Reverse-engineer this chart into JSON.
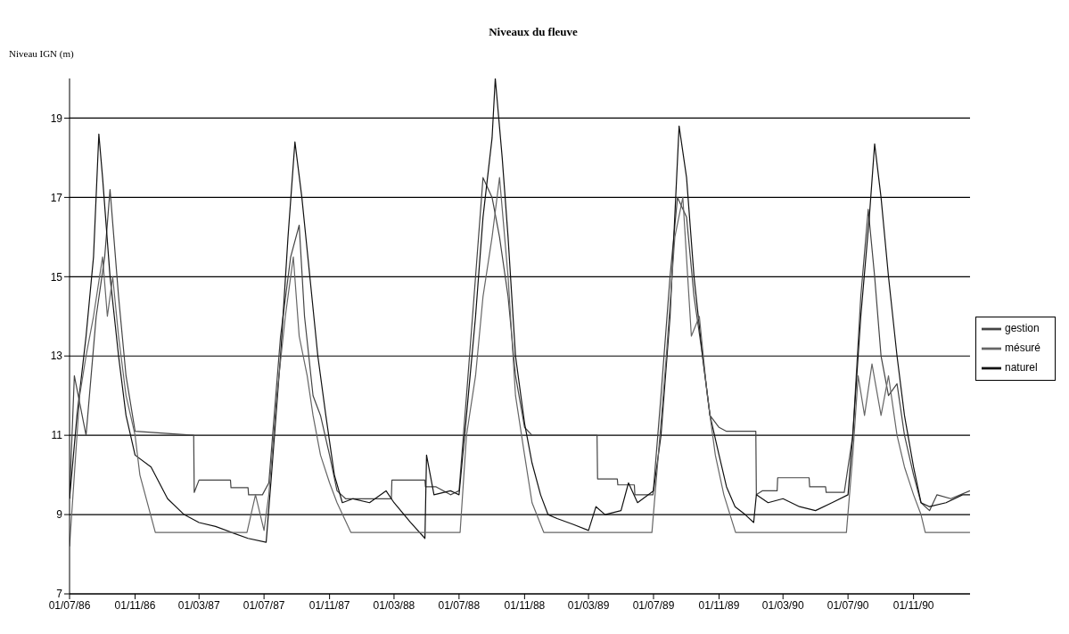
{
  "chart_data": {
    "type": "line",
    "title": "Niveaux du fleuve",
    "ylabel": "Niveau IGN (m)",
    "ylim": [
      7,
      20
    ],
    "yticks": [
      7,
      9,
      11,
      13,
      15,
      17,
      19
    ],
    "xlim": [
      "1986-07-01",
      "1991-02-15"
    ],
    "xticks": [
      {
        "value": "1986-07-01",
        "label": "01/07/86"
      },
      {
        "value": "1986-11-01",
        "label": "01/11/86"
      },
      {
        "value": "1987-03-01",
        "label": "01/03/87"
      },
      {
        "value": "1987-07-01",
        "label": "01/07/87"
      },
      {
        "value": "1987-11-01",
        "label": "01/11/87"
      },
      {
        "value": "1988-03-01",
        "label": "01/03/88"
      },
      {
        "value": "1988-07-01",
        "label": "01/07/88"
      },
      {
        "value": "1988-11-01",
        "label": "01/11/88"
      },
      {
        "value": "1989-03-01",
        "label": "01/03/89"
      },
      {
        "value": "1989-07-01",
        "label": "01/07/89"
      },
      {
        "value": "1989-11-01",
        "label": "01/11/89"
      },
      {
        "value": "1990-03-01",
        "label": "01/03/90"
      },
      {
        "value": "1990-07-01",
        "label": "01/07/90"
      },
      {
        "value": "1990-11-01",
        "label": "01/11/90"
      }
    ],
    "grid": "y",
    "legend": "right",
    "marker": "none",
    "line_style": "solid",
    "series": [
      {
        "name": "gestion",
        "color": "#444444",
        "x": [
          "1986-07-01",
          "1986-07-10",
          "1986-08-01",
          "1986-08-20",
          "1986-09-05",
          "1986-09-15",
          "1986-10-01",
          "1986-10-15",
          "1986-11-01",
          "1987-02-19",
          "1987-02-20",
          "1987-03-01",
          "1987-04-29",
          "1987-04-30",
          "1987-06-01",
          "1987-06-02",
          "1987-06-28",
          "1987-07-10",
          "1987-08-01",
          "1987-08-20",
          "1987-09-05",
          "1987-09-15",
          "1987-10-01",
          "1987-10-15",
          "1987-11-01",
          "1987-11-15",
          "1987-12-01",
          "1988-02-25",
          "1988-02-26",
          "1988-04-28",
          "1988-04-29",
          "1988-05-19",
          "1988-06-15",
          "1988-07-01",
          "1988-07-15",
          "1988-08-01",
          "1988-08-15",
          "1988-09-01",
          "1988-09-15",
          "1988-10-01",
          "1988-10-15",
          "1988-11-01",
          "1988-11-15",
          "1989-03-17",
          "1989-03-18",
          "1989-04-24",
          "1989-04-25",
          "1989-05-26",
          "1989-05-27",
          "1989-06-30",
          "1989-07-15",
          "1989-08-01",
          "1989-08-15",
          "1989-09-01",
          "1989-09-15",
          "1989-10-01",
          "1989-10-15",
          "1989-11-01",
          "1989-11-15",
          "1990-01-09",
          "1990-01-10",
          "1990-01-21",
          "1990-02-18",
          "1990-02-19",
          "1990-04-19",
          "1990-04-20",
          "1990-05-20",
          "1990-05-21",
          "1990-06-24",
          "1990-07-10",
          "1990-07-25",
          "1990-08-08",
          "1990-08-20",
          "1990-09-01",
          "1990-09-15",
          "1990-10-01",
          "1990-10-15",
          "1990-11-01",
          "1990-11-15",
          "1990-12-01",
          "1990-12-15",
          "1991-01-10",
          "1991-02-15"
        ],
        "values": [
          9.4,
          12.5,
          11.0,
          14.0,
          15.5,
          17.2,
          14.5,
          12.5,
          11.1,
          11.0,
          9.56,
          9.87,
          9.87,
          9.68,
          9.68,
          9.5,
          9.5,
          9.8,
          13.5,
          15.5,
          16.3,
          14.0,
          12.0,
          11.5,
          10.5,
          9.6,
          9.4,
          9.4,
          9.87,
          9.87,
          9.7,
          9.7,
          9.5,
          9.6,
          12.0,
          15.0,
          17.5,
          17.0,
          16.0,
          14.5,
          12.5,
          11.2,
          11.0,
          11.0,
          9.9,
          9.9,
          9.75,
          9.75,
          9.5,
          9.5,
          12.0,
          15.0,
          17.0,
          16.5,
          14.5,
          13.0,
          11.5,
          11.2,
          11.1,
          11.1,
          9.5,
          9.6,
          9.6,
          9.93,
          9.93,
          9.7,
          9.7,
          9.56,
          9.56,
          11.0,
          14.5,
          16.7,
          15.0,
          13.0,
          12.0,
          12.3,
          11.0,
          10.0,
          9.3,
          9.1,
          9.5,
          9.4,
          9.6
        ]
      },
      {
        "name": "naturel",
        "color": "#111111",
        "x": [
          "1986-07-01",
          "1986-07-15",
          "1986-08-01",
          "1986-08-15",
          "1986-08-25",
          "1986-09-01",
          "1986-09-15",
          "1986-10-01",
          "1986-10-15",
          "1986-11-01",
          "1986-12-01",
          "1987-01-01",
          "1987-02-01",
          "1987-03-01",
          "1987-04-01",
          "1987-05-01",
          "1987-06-01",
          "1987-07-05",
          "1987-07-15",
          "1987-08-01",
          "1987-08-15",
          "1987-08-28",
          "1987-09-10",
          "1987-09-25",
          "1987-10-10",
          "1987-10-25",
          "1987-11-10",
          "1987-11-25",
          "1987-12-15",
          "1988-01-15",
          "1988-02-15",
          "1988-03-01",
          "1988-04-01",
          "1988-04-28",
          "1988-05-01",
          "1988-05-15",
          "1988-06-15",
          "1988-07-01",
          "1988-07-15",
          "1988-08-01",
          "1988-08-15",
          "1988-09-01",
          "1988-09-07",
          "1988-09-20",
          "1988-10-01",
          "1988-10-15",
          "1988-11-01",
          "1988-11-15",
          "1988-12-01",
          "1988-12-15",
          "1989-01-01",
          "1989-02-01",
          "1989-03-01",
          "1989-03-15",
          "1989-04-01",
          "1989-05-01",
          "1989-05-15",
          "1989-06-01",
          "1989-07-01",
          "1989-07-15",
          "1989-08-01",
          "1989-08-18",
          "1989-09-01",
          "1989-09-15",
          "1989-10-01",
          "1989-10-15",
          "1989-11-01",
          "1989-11-15",
          "1989-12-01",
          "1989-12-20",
          "1990-01-05",
          "1990-01-10",
          "1990-02-01",
          "1990-03-01",
          "1990-04-01",
          "1990-05-01",
          "1990-06-01",
          "1990-07-01",
          "1990-07-10",
          "1990-07-25",
          "1990-08-10",
          "1990-08-20",
          "1990-09-01",
          "1990-09-15",
          "1990-10-01",
          "1990-10-15",
          "1990-11-01",
          "1990-11-15",
          "1990-12-01",
          "1991-01-01",
          "1991-02-01",
          "1991-02-15"
        ],
        "values": [
          9.4,
          11.5,
          13.5,
          15.5,
          18.6,
          17.5,
          15.0,
          13.0,
          11.5,
          10.5,
          10.2,
          9.4,
          9.0,
          8.8,
          8.7,
          8.55,
          8.4,
          8.3,
          10.0,
          13.0,
          16.0,
          18.4,
          17.0,
          15.0,
          13.0,
          11.5,
          10.0,
          9.3,
          9.4,
          9.3,
          9.6,
          9.3,
          8.8,
          8.4,
          10.5,
          9.5,
          9.6,
          9.5,
          11.5,
          14.0,
          16.5,
          18.5,
          20.0,
          18.0,
          16.0,
          13.0,
          11.3,
          10.3,
          9.5,
          9.0,
          8.9,
          8.75,
          8.6,
          9.2,
          9.0,
          9.1,
          9.8,
          9.3,
          9.6,
          11.0,
          14.0,
          18.8,
          17.5,
          15.0,
          13.0,
          11.5,
          10.5,
          9.7,
          9.2,
          9.0,
          8.8,
          9.5,
          9.3,
          9.4,
          9.2,
          9.1,
          9.3,
          9.5,
          11.0,
          14.0,
          16.5,
          18.35,
          17.0,
          15.0,
          13.0,
          11.5,
          10.2,
          9.3,
          9.2,
          9.3,
          9.5,
          9.5
        ]
      },
      {
        "name": "mésuré",
        "color": "#666666",
        "x": [
          "1986-07-01",
          "1986-07-10",
          "1986-07-20",
          "1986-08-01",
          "1986-08-15",
          "1986-09-01",
          "1986-09-10",
          "1986-09-20",
          "1986-10-01",
          "1986-10-15",
          "1986-11-01",
          "1986-11-10",
          "1986-12-09",
          "1987-05-30",
          "1987-06-15",
          "1987-07-01",
          "1987-07-10",
          "1987-07-25",
          "1987-08-10",
          "1987-08-25",
          "1987-09-05",
          "1987-09-20",
          "1987-10-01",
          "1987-10-15",
          "1987-11-01",
          "1987-11-15",
          "1987-12-11",
          "1988-07-03",
          "1988-07-15",
          "1988-08-01",
          "1988-08-15",
          "1988-09-01",
          "1988-09-15",
          "1988-10-01",
          "1988-10-15",
          "1988-11-01",
          "1988-11-15",
          "1988-12-07",
          "1989-06-28",
          "1989-07-10",
          "1989-07-25",
          "1989-08-10",
          "1989-08-25",
          "1989-09-10",
          "1989-09-25",
          "1989-10-10",
          "1989-10-25",
          "1989-11-10",
          "1989-12-02",
          "1990-06-28",
          "1990-07-10",
          "1990-07-20",
          "1990-08-01",
          "1990-08-15",
          "1990-09-01",
          "1990-09-15",
          "1990-10-01",
          "1990-10-15",
          "1990-11-01",
          "1990-11-15",
          "1990-11-23",
          "1991-02-15"
        ],
        "values": [
          8.2,
          10.0,
          12.0,
          13.0,
          14.0,
          15.5,
          14.0,
          15.0,
          13.5,
          12.0,
          11.0,
          10.0,
          8.55,
          8.55,
          9.5,
          8.6,
          9.5,
          12.0,
          14.0,
          15.5,
          13.5,
          12.5,
          11.5,
          10.5,
          9.8,
          9.3,
          8.55,
          8.55,
          11.0,
          12.5,
          14.5,
          16.0,
          17.5,
          15.0,
          12.0,
          10.5,
          9.3,
          8.55,
          8.55,
          10.5,
          13.0,
          16.0,
          17.0,
          13.5,
          14.0,
          12.0,
          10.5,
          9.5,
          8.55,
          8.55,
          10.5,
          12.5,
          11.5,
          12.8,
          11.5,
          12.5,
          11.0,
          10.2,
          9.5,
          9.0,
          8.55,
          8.55
        ]
      }
    ]
  }
}
